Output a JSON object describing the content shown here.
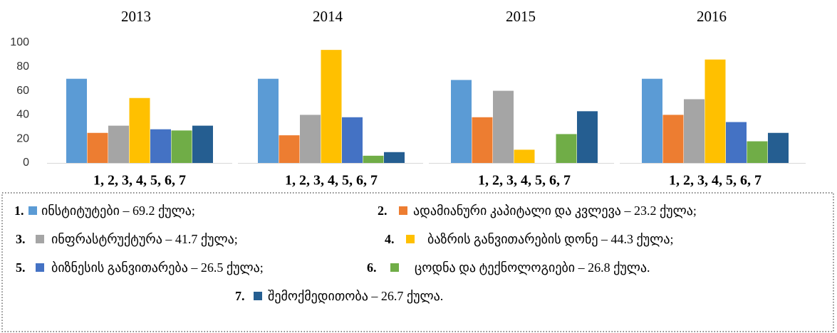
{
  "chart_data": {
    "type": "bar",
    "categories": [
      "2013",
      "2014",
      "2015",
      "2016"
    ],
    "group_labels": [
      "1, 2, 3, 4, 5, 6, 7",
      "1, 2, 3, 4, 5, 6, 7",
      "1, 2, 3, 4, 5, 6, 7",
      "1, 2, 3, 4, 5, 6, 7"
    ],
    "ylim": [
      0,
      100
    ],
    "yticks": [
      0,
      20,
      40,
      60,
      80,
      100
    ],
    "series": [
      {
        "number": "1.",
        "name": "ინსტიტუტები – 69.2 ქულა;",
        "color": "#5b9bd5",
        "values": [
          70,
          70,
          69,
          70
        ]
      },
      {
        "number": "2.",
        "name": "ადამიანური კაპიტალი და კვლევა – 23.2 ქულა;",
        "color": "#ed7d31",
        "values": [
          25,
          23,
          38,
          40
        ]
      },
      {
        "number": "3.",
        "name": "ინფრასტრუქტურა – 41.7 ქულა;",
        "color": "#a5a5a5",
        "values": [
          31,
          40,
          60,
          53
        ]
      },
      {
        "number": "4.",
        "name": "ბაზრის განვითარების დონე – 44.3 ქულა;",
        "color": "#ffc000",
        "values": [
          54,
          94,
          11,
          86
        ]
      },
      {
        "number": "5.",
        "name": "ბიზნესის განვითარება – 26.5 ქულა;",
        "color": "#4472c4",
        "values": [
          28,
          38,
          null,
          34
        ]
      },
      {
        "number": "6.",
        "name": "ცოდნა და ტექნოლოგიები – 26.8 ქულა.",
        "color": "#70ad47",
        "values": [
          27,
          6,
          24,
          18
        ]
      },
      {
        "number": "7.",
        "name": "შემოქმედითობა – 26.7 ქულა.",
        "color": "#255e91",
        "values": [
          31,
          9,
          43,
          25
        ]
      }
    ]
  }
}
